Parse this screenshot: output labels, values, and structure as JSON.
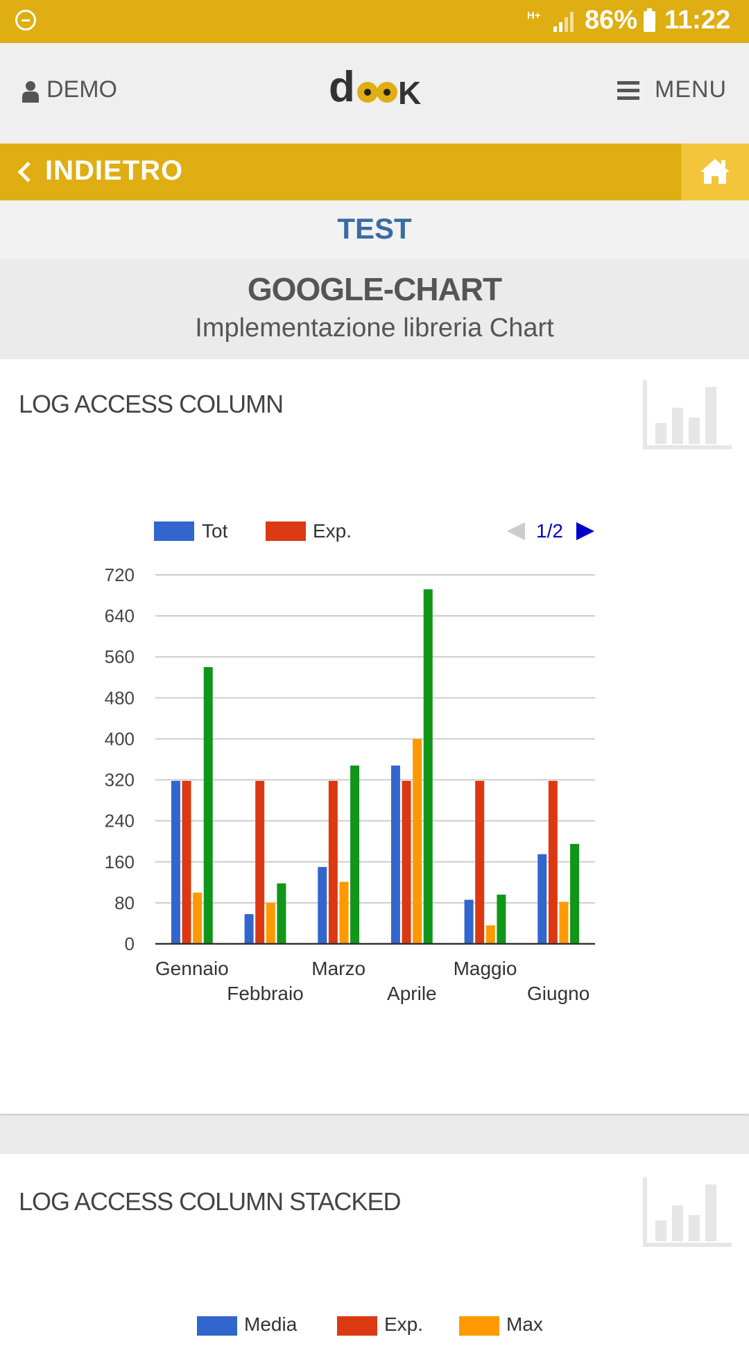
{
  "status_bar": {
    "network": "H+",
    "battery": "86%",
    "time": "11:22"
  },
  "header": {
    "user_label": "DEMO",
    "logo_text": "dook",
    "menu_label": "MENU"
  },
  "nav": {
    "back_label": "INDIETRO",
    "section_title": "TEST"
  },
  "page": {
    "title": "GOOGLE-CHART",
    "subtitle": "Implementazione libreria Chart"
  },
  "colors": {
    "accent": "#deae12",
    "title_blue": "#3a6ca3",
    "series": [
      "#3366cc",
      "#dc3912",
      "#ff9900",
      "#109618"
    ]
  },
  "cards": [
    {
      "title": "LOG ACCESS COLUMN",
      "icon": "bar-chart-icon",
      "legend": [
        "Tot",
        "Exp."
      ],
      "pager": "1/2",
      "chart_data": {
        "type": "bar",
        "categories": [
          "Gennaio",
          "Febbraio",
          "Marzo",
          "Aprile",
          "Maggio",
          "Giugno"
        ],
        "series": [
          {
            "name": "Tot",
            "values": [
              318,
              58,
              150,
              348,
              86,
              175
            ]
          },
          {
            "name": "Exp.",
            "values": [
              318,
              318,
              318,
              318,
              318,
              318
            ]
          },
          {
            "values": [
              100,
              80,
              121,
              400,
              36,
              82
            ]
          },
          {
            "values": [
              540,
              118,
              348,
              692,
              96,
              195
            ]
          }
        ],
        "yticks": [
          0,
          80,
          160,
          240,
          320,
          400,
          480,
          560,
          640,
          720
        ],
        "ylim": [
          0,
          720
        ],
        "grid": true,
        "legend_position": "top"
      }
    },
    {
      "title": "LOG ACCESS COLUMN STACKED",
      "icon": "bar-chart-icon",
      "legend": [
        "Media",
        "Exp.",
        "Max"
      ]
    }
  ]
}
